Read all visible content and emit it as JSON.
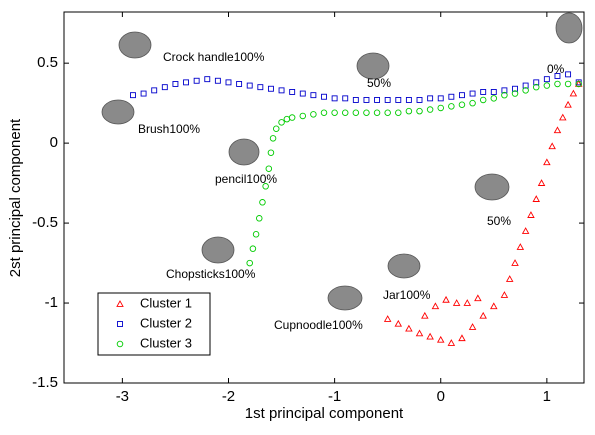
{
  "chart_data": {
    "type": "scatter",
    "xlabel": "1st principal component",
    "ylabel": "2st principal component",
    "xlim": [
      -3.55,
      1.35
    ],
    "ylim": [
      -1.5,
      0.82
    ],
    "xticks": [
      -3,
      -2,
      -1,
      0,
      1
    ],
    "yticks": [
      -1.5,
      -1,
      -0.5,
      0,
      0.5
    ],
    "legend": "lower left",
    "series": [
      {
        "name": "Cluster 1",
        "color": "#ff0000",
        "marker": "triangle",
        "x": [
          -0.5,
          -0.4,
          -0.3,
          -0.2,
          -0.1,
          0.0,
          0.1,
          0.2,
          0.3,
          0.4,
          0.5,
          0.6,
          0.65,
          0.7,
          0.75,
          0.8,
          0.85,
          0.9,
          0.95,
          1.0,
          1.05,
          1.1,
          1.15,
          1.2,
          1.25,
          1.3,
          -0.15,
          -0.05,
          0.05,
          0.15,
          0.25,
          0.35
        ],
        "y": [
          -1.1,
          -1.13,
          -1.16,
          -1.19,
          -1.21,
          -1.23,
          -1.25,
          -1.22,
          -1.15,
          -1.08,
          -1.02,
          -0.95,
          -0.85,
          -0.75,
          -0.65,
          -0.55,
          -0.45,
          -0.35,
          -0.25,
          -0.12,
          -0.02,
          0.08,
          0.16,
          0.24,
          0.31,
          0.37,
          -1.08,
          -1.02,
          -0.98,
          -1.0,
          -1.0,
          -0.97
        ]
      },
      {
        "name": "Cluster 2",
        "color": "#0000cc",
        "marker": "square",
        "x": [
          -2.9,
          -2.8,
          -2.7,
          -2.6,
          -2.5,
          -2.4,
          -2.3,
          -2.2,
          -2.1,
          -2.0,
          -1.9,
          -1.8,
          -1.7,
          -1.6,
          -1.5,
          -1.4,
          -1.3,
          -1.2,
          -1.1,
          -1.0,
          -0.9,
          -0.8,
          -0.7,
          -0.6,
          -0.5,
          -0.4,
          -0.3,
          -0.2,
          -0.1,
          0.0,
          0.1,
          0.2,
          0.3,
          0.4,
          0.5,
          0.6,
          0.7,
          0.8,
          0.9,
          1.0,
          1.1,
          1.2,
          1.3
        ],
        "y": [
          0.3,
          0.31,
          0.33,
          0.35,
          0.37,
          0.38,
          0.39,
          0.4,
          0.39,
          0.38,
          0.37,
          0.36,
          0.35,
          0.34,
          0.33,
          0.32,
          0.31,
          0.3,
          0.29,
          0.28,
          0.28,
          0.27,
          0.27,
          0.27,
          0.27,
          0.27,
          0.27,
          0.27,
          0.28,
          0.28,
          0.29,
          0.3,
          0.31,
          0.32,
          0.32,
          0.33,
          0.34,
          0.36,
          0.38,
          0.4,
          0.42,
          0.43,
          0.38
        ]
      },
      {
        "name": "Cluster 3",
        "color": "#00cc00",
        "marker": "circle",
        "x": [
          -1.8,
          -1.77,
          -1.74,
          -1.71,
          -1.68,
          -1.65,
          -1.62,
          -1.6,
          -1.58,
          -1.55,
          -1.5,
          -1.45,
          -1.4,
          -1.3,
          -1.2,
          -1.1,
          -1.0,
          -0.9,
          -0.8,
          -0.7,
          -0.6,
          -0.5,
          -0.4,
          -0.3,
          -0.2,
          -0.1,
          0.0,
          0.1,
          0.2,
          0.3,
          0.4,
          0.5,
          0.6,
          0.7,
          0.8,
          0.9,
          1.0,
          1.1,
          1.2,
          1.3
        ],
        "y": [
          -0.75,
          -0.66,
          -0.57,
          -0.47,
          -0.37,
          -0.27,
          -0.16,
          -0.06,
          0.03,
          0.09,
          0.13,
          0.15,
          0.16,
          0.17,
          0.18,
          0.19,
          0.19,
          0.19,
          0.19,
          0.19,
          0.19,
          0.19,
          0.19,
          0.2,
          0.2,
          0.21,
          0.22,
          0.23,
          0.24,
          0.25,
          0.27,
          0.28,
          0.3,
          0.31,
          0.33,
          0.35,
          0.36,
          0.37,
          0.37,
          0.37
        ]
      }
    ],
    "annotations": [
      "Crock handle100%",
      "Brush100%",
      "pencil100%",
      "Chopsticks100%",
      "50%",
      "0%",
      "50%",
      "Jar100%",
      "Cupnoodle100%"
    ]
  }
}
